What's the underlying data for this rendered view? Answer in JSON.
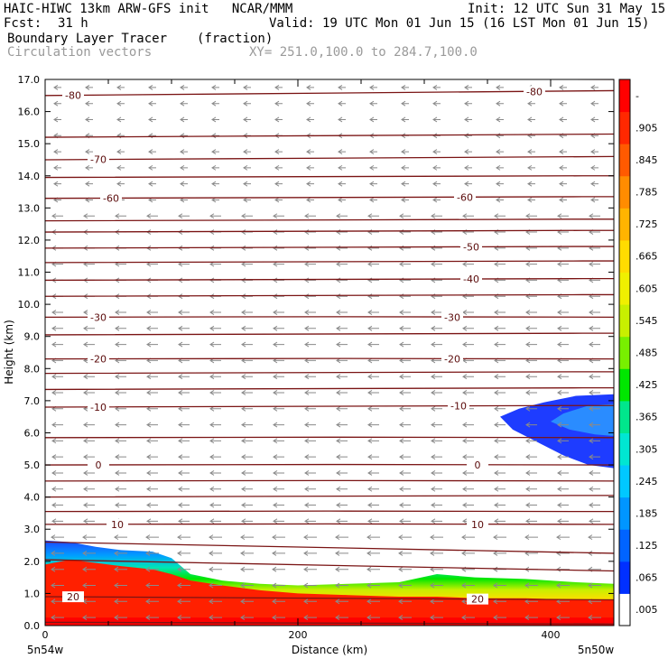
{
  "header": {
    "model_line": "HAIC-HIWC 13km ARW-GFS init   NCAR/MMM",
    "init_line": "Init: 12 UTC Sun 31 May 15",
    "fcst_label": "Fcst:",
    "fcst_value": "31 h",
    "valid_line": "Valid: 19 UTC Mon 01 Jun 15 (16 LST Mon 01 Jun 15)",
    "field_name": "Boundary Layer Tracer",
    "field_units": "(fraction)",
    "vector_name": "Circulation vectors",
    "xy_range": "XY= 251.0,100.0 to 284.7,100.0"
  },
  "chart_data": {
    "type": "heatmap",
    "xlabel": "Distance (km)",
    "ylabel": "Height (km)",
    "xlim": [
      0,
      450
    ],
    "ylim": [
      0,
      17
    ],
    "x_ticks": [
      {
        "value": 0,
        "label": "0"
      },
      {
        "value": 200,
        "label": "200"
      },
      {
        "value": 400,
        "label": "400"
      }
    ],
    "y_ticks": [
      "0.0",
      "1.0",
      "2.0",
      "3.0",
      "4.0",
      "5.0",
      "6.0",
      "7.0",
      "8.0",
      "9.0",
      "10.0",
      "11.0",
      "12.0",
      "13.0",
      "14.0",
      "15.0",
      "16.0",
      "17.0"
    ],
    "endpoint_labels": {
      "left": "5n54w",
      "right": "5n50w"
    },
    "colorbar": {
      "labels": [
        ".005",
        ".065",
        ".125",
        ".185",
        ".245",
        ".305",
        ".365",
        ".425",
        ".485",
        ".545",
        ".605",
        ".665",
        ".725",
        ".785",
        ".845",
        ".905",
        "-"
      ],
      "colors": [
        "#ffffff",
        "#0030ff",
        "#0064ff",
        "#0096ff",
        "#00c8ff",
        "#00e6d2",
        "#00e68c",
        "#00e600",
        "#78f000",
        "#c8f000",
        "#f0f000",
        "#ffdc00",
        "#ffb400",
        "#ff8c00",
        "#ff5a00",
        "#ff2800",
        "#ff0000"
      ]
    },
    "tracer_surface": [
      {
        "x": 0,
        "top": 2.65,
        "red_top": 1.9
      },
      {
        "x": 20,
        "top": 2.6,
        "red_top": 2.05
      },
      {
        "x": 40,
        "top": 2.45,
        "red_top": 1.95
      },
      {
        "x": 60,
        "top": 2.35,
        "red_top": 1.85
      },
      {
        "x": 85,
        "top": 2.3,
        "red_top": 1.75
      },
      {
        "x": 100,
        "top": 2.1,
        "red_top": 1.6
      },
      {
        "x": 115,
        "top": 1.6,
        "red_top": 1.4
      },
      {
        "x": 140,
        "top": 1.4,
        "red_top": 1.25
      },
      {
        "x": 170,
        "top": 1.3,
        "red_top": 1.1
      },
      {
        "x": 200,
        "top": 1.25,
        "red_top": 1.0
      },
      {
        "x": 240,
        "top": 1.3,
        "red_top": 0.95
      },
      {
        "x": 280,
        "top": 1.35,
        "red_top": 0.9
      },
      {
        "x": 310,
        "top": 1.6,
        "red_top": 0.9
      },
      {
        "x": 340,
        "top": 1.5,
        "red_top": 0.85
      },
      {
        "x": 380,
        "top": 1.45,
        "red_top": 0.85
      },
      {
        "x": 420,
        "top": 1.35,
        "red_top": 0.8
      },
      {
        "x": 450,
        "top": 1.3,
        "red_top": 0.8
      }
    ],
    "upper_plume": {
      "outline": [
        [
          450,
          7.2
        ],
        [
          420,
          7.15
        ],
        [
          395,
          6.95
        ],
        [
          375,
          6.75
        ],
        [
          360,
          6.5
        ],
        [
          370,
          6.1
        ],
        [
          390,
          5.7
        ],
        [
          410,
          5.3
        ],
        [
          430,
          5.0
        ],
        [
          450,
          4.9
        ]
      ],
      "core": [
        [
          450,
          6.9
        ],
        [
          430,
          6.85
        ],
        [
          410,
          6.6
        ],
        [
          400,
          6.35
        ],
        [
          415,
          6.1
        ],
        [
          435,
          5.95
        ],
        [
          450,
          5.9
        ]
      ]
    },
    "isotherms": [
      {
        "label": "-80",
        "heights": [
          16.5,
          16.65
        ]
      },
      {
        "label": "-70",
        "heights": [
          14.5,
          14.6
        ]
      },
      {
        "label": "-60",
        "heights": [
          13.3,
          13.35
        ]
      },
      {
        "label": "-50",
        "heights": [
          11.75,
          11.8
        ]
      },
      {
        "label": "-40",
        "heights": [
          10.75,
          10.8
        ]
      },
      {
        "label": "-30",
        "heights": [
          9.6,
          9.6
        ]
      },
      {
        "label": "-20",
        "heights": [
          8.3,
          8.3
        ]
      },
      {
        "label": "-10",
        "heights": [
          6.8,
          6.85
        ]
      },
      {
        "label": "0",
        "heights": [
          5.0,
          5.0
        ]
      },
      {
        "label": "10",
        "heights": [
          3.15,
          3.15
        ]
      },
      {
        "label": "20",
        "heights": [
          0.9,
          0.8
        ]
      },
      {
        "label": "",
        "heights": [
          17.05,
          17.0
        ]
      },
      {
        "label": "",
        "heights": [
          15.2,
          15.3
        ]
      },
      {
        "label": "",
        "heights": [
          13.95,
          14.0
        ]
      },
      {
        "label": "",
        "heights": [
          12.6,
          12.65
        ]
      },
      {
        "label": "",
        "heights": [
          12.25,
          12.3
        ]
      },
      {
        "label": "",
        "heights": [
          11.3,
          11.35
        ]
      },
      {
        "label": "",
        "heights": [
          10.25,
          10.3
        ]
      },
      {
        "label": "",
        "heights": [
          9.05,
          9.1
        ]
      },
      {
        "label": "",
        "heights": [
          7.85,
          7.9
        ]
      },
      {
        "label": "",
        "heights": [
          7.35,
          7.4
        ]
      },
      {
        "label": "",
        "heights": [
          5.85,
          5.85
        ]
      },
      {
        "label": "",
        "heights": [
          4.5,
          4.5
        ]
      },
      {
        "label": "",
        "heights": [
          4.0,
          4.05
        ]
      },
      {
        "label": "",
        "heights": [
          3.55,
          3.55
        ]
      },
      {
        "label": "",
        "heights": [
          2.6,
          2.25
        ]
      },
      {
        "label": "",
        "heights": [
          2.05,
          1.7
        ]
      },
      {
        "label": "",
        "heights": [
          0.1,
          0.05
        ]
      }
    ],
    "isotherm_label_positions": [
      {
        "label": "-80",
        "x": [
          15,
          380
        ]
      },
      {
        "label": "-70",
        "x": [
          35
        ]
      },
      {
        "label": "-60",
        "x": [
          45,
          325
        ]
      },
      {
        "label": "-50",
        "x": [
          330
        ]
      },
      {
        "label": "-40",
        "x": [
          330
        ]
      },
      {
        "label": "-30",
        "x": [
          35,
          315
        ]
      },
      {
        "label": "-20",
        "x": [
          35,
          315
        ]
      },
      {
        "label": "-10",
        "x": [
          35,
          320
        ]
      },
      {
        "label": "0",
        "x": [
          35,
          335
        ]
      },
      {
        "label": "10",
        "x": [
          50,
          335
        ]
      },
      {
        "label": "20",
        "x": [
          15,
          335
        ]
      }
    ],
    "vectors": {
      "direction": "westward",
      "x_step_km": 25,
      "z_step_km": 0.5
    }
  }
}
